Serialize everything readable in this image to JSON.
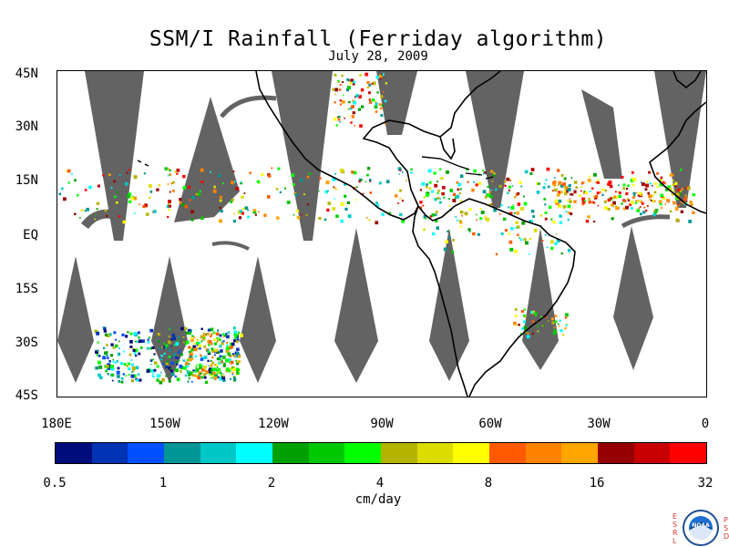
{
  "title": "SSM/I Rainfall (Ferriday algorithm)",
  "subtitle": "July 28, 2009",
  "lat_labels": [
    "45N",
    "30N",
    "15N",
    "EQ",
    "15S",
    "30S",
    "45S"
  ],
  "lon_labels": [
    "180E",
    "150W",
    "120W",
    "90W",
    "60W",
    "30W",
    "0"
  ],
  "colorbar": {
    "colors": [
      "#000c7a",
      "#0032b4",
      "#0050ff",
      "#009696",
      "#00c8c8",
      "#00ffff",
      "#00a000",
      "#00c800",
      "#00ff00",
      "#b4b400",
      "#dcdc00",
      "#ffff00",
      "#ff5a00",
      "#ff8200",
      "#ffa500",
      "#960000",
      "#c80000",
      "#ff0000"
    ],
    "ticks": [
      "0.5",
      "1",
      "2",
      "4",
      "8",
      "16",
      "32"
    ],
    "units": "cm/day"
  },
  "colors": {
    "swath_gap": "#636363",
    "coast": "#000000"
  },
  "logo": {
    "left_letters": [
      "E",
      "S",
      "R",
      "L"
    ],
    "right_letters": [
      "P",
      "S",
      "D"
    ],
    "center_text": "NOAA"
  }
}
